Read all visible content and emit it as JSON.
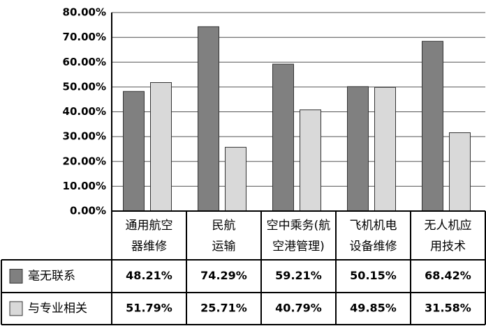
{
  "chart_data": {
    "type": "bar",
    "categories": [
      "通用航空器维修",
      "民航运输",
      "空中乘务(航空港管理)",
      "飞机机电设备维修",
      "无人机应用技术"
    ],
    "series": [
      {
        "name": "毫无联系",
        "color": "#808080",
        "values": [
          48.21,
          74.29,
          59.21,
          50.15,
          68.42
        ],
        "value_labels": [
          "48.21%",
          "74.29%",
          "59.21%",
          "50.15%",
          "68.42%"
        ]
      },
      {
        "name": "与专业相关",
        "color": "#d9d9d9",
        "values": [
          51.79,
          25.71,
          40.79,
          49.85,
          31.58
        ],
        "value_labels": [
          "51.79%",
          "25.71%",
          "40.79%",
          "49.85%",
          "31.58%"
        ]
      }
    ],
    "ylim": [
      0,
      80
    ],
    "yticks": [
      {
        "value": 0,
        "label": "0.00%"
      },
      {
        "value": 10,
        "label": "10.00%"
      },
      {
        "value": 20,
        "label": "20.00%"
      },
      {
        "value": 30,
        "label": "30.00%"
      },
      {
        "value": 40,
        "label": "40.00%"
      },
      {
        "value": 50,
        "label": "50.00%"
      },
      {
        "value": 60,
        "label": "60.00%"
      },
      {
        "value": 70,
        "label": "70.00%"
      },
      {
        "value": 80,
        "label": "80.00%"
      }
    ],
    "grid": true
  }
}
